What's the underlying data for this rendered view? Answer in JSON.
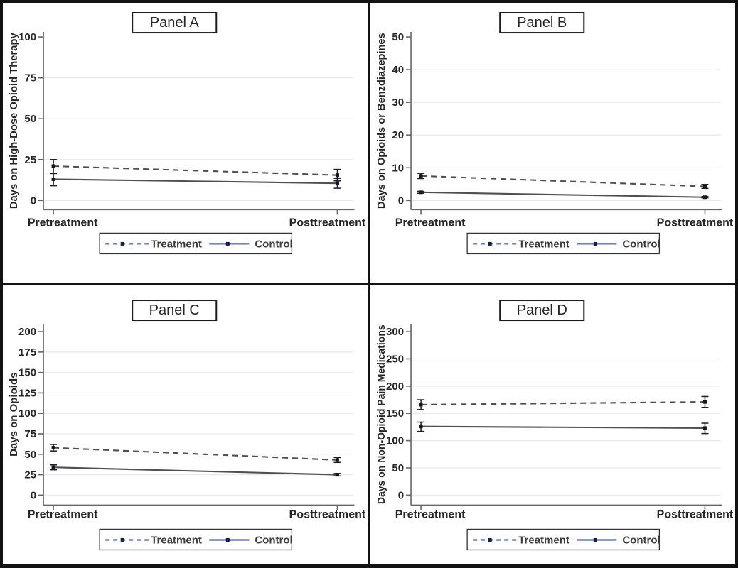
{
  "figure": {
    "type": "four-panel-line-figure",
    "colors": {
      "plot_line": "#4f4f4f",
      "error_bar": "#1c1c1c",
      "marker": "#15152a",
      "legend_line": "#273a80",
      "legend_marker": "#101d4d",
      "grid": "#e9e9e9",
      "axis": "#666666",
      "text": "#262626",
      "frame": "#121212"
    }
  },
  "chart_data": [
    {
      "type": "line",
      "title": "Panel A",
      "row": "top",
      "ylabel": "Days on High-Dose Opioid Therapy",
      "yticks": [
        0,
        25,
        50,
        75,
        100
      ],
      "ylim": [
        0,
        107
      ],
      "grid": "horizontal",
      "legend_position": "bottom",
      "categories": [
        "Pretreatment",
        "Posttreatment"
      ],
      "series": [
        {
          "name": "Treatment",
          "style": "dashed",
          "values": [
            21,
            15.5
          ],
          "ci_low": [
            16.5,
            12
          ],
          "ci_high": [
            25,
            19
          ]
        },
        {
          "name": "Control",
          "style": "solid",
          "values": [
            13,
            10.5
          ],
          "ci_low": [
            9,
            7.5
          ],
          "ci_high": [
            16.5,
            13.5
          ]
        }
      ]
    },
    {
      "type": "line",
      "title": "Panel B",
      "row": "top",
      "ylabel": "Days on Opioids or Benzdiazepines",
      "yticks": [
        0,
        10,
        20,
        30,
        40,
        50
      ],
      "ylim": [
        0,
        53
      ],
      "grid": "horizontal",
      "legend_position": "bottom",
      "categories": [
        "Pretreatment",
        "Posttreatment"
      ],
      "series": [
        {
          "name": "Treatment",
          "style": "dashed",
          "values": [
            7.5,
            4.3
          ],
          "ci_low": [
            6.7,
            3.7
          ],
          "ci_high": [
            8.3,
            4.9
          ]
        },
        {
          "name": "Control",
          "style": "solid",
          "values": [
            2.5,
            1
          ],
          "ci_low": [
            2.2,
            0.8
          ],
          "ci_high": [
            2.8,
            1.2
          ]
        }
      ]
    },
    {
      "type": "line",
      "title": "Panel C",
      "row": "bottom",
      "ylabel": "Days on Opioids",
      "yticks": [
        0,
        25,
        50,
        75,
        100,
        125,
        150,
        175,
        200
      ],
      "ylim": [
        0,
        210
      ],
      "grid": "horizontal",
      "legend_position": "bottom",
      "categories": [
        "Pretreatment",
        "Posttreatment"
      ],
      "series": [
        {
          "name": "Treatment",
          "style": "dashed",
          "values": [
            58,
            43
          ],
          "ci_low": [
            54,
            40
          ],
          "ci_high": [
            62,
            46
          ]
        },
        {
          "name": "Control",
          "style": "solid",
          "values": [
            34,
            25
          ],
          "ci_low": [
            31,
            23.5
          ],
          "ci_high": [
            37,
            26.5
          ]
        }
      ]
    },
    {
      "type": "line",
      "title": "Panel D",
      "row": "bottom",
      "ylabel": "Days on Non-Opioid Pain Medications",
      "yticks": [
        0,
        50,
        100,
        150,
        200,
        250,
        300
      ],
      "ylim": [
        0,
        315
      ],
      "grid": "horizontal",
      "legend_position": "bottom",
      "categories": [
        "Pretreatment",
        "Posttreatment"
      ],
      "series": [
        {
          "name": "Treatment",
          "style": "dashed",
          "values": [
            166,
            171
          ],
          "ci_low": [
            157,
            161
          ],
          "ci_high": [
            175,
            181
          ]
        },
        {
          "name": "Control",
          "style": "solid",
          "values": [
            126,
            123
          ],
          "ci_low": [
            117,
            113
          ],
          "ci_high": [
            134,
            132
          ]
        }
      ]
    }
  ]
}
